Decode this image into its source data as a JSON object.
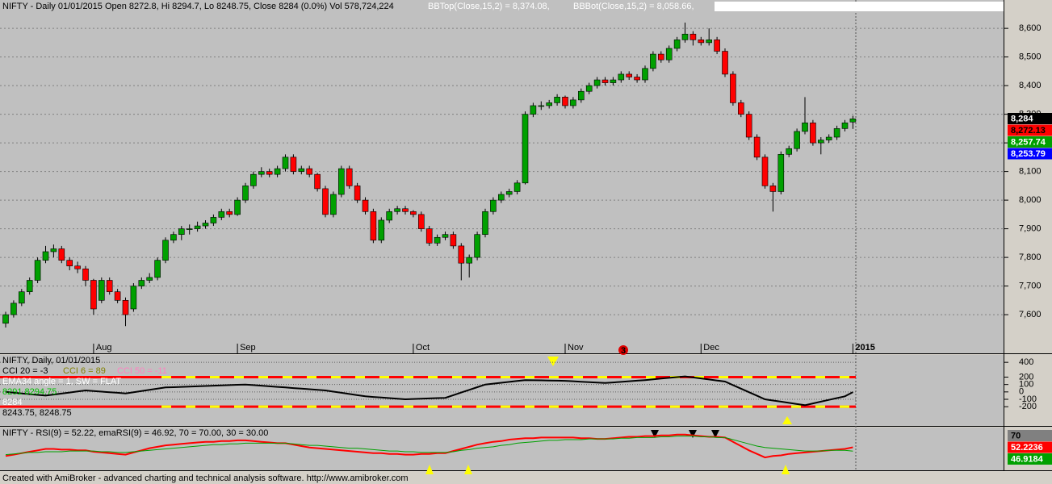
{
  "chart_data": [
    {
      "type": "candlestick",
      "title": "NIFTY - Daily 01/01/2015 Open 8272.8, Hi 8294.7, Lo 8248.75, Close 8284 (0.0%) Vol 578,724,224",
      "legend": [
        {
          "text": "BBTop(Close,15,2) = 8,374.08,",
          "color": "#ffffff"
        },
        {
          "text": "BBBot(Close,15,2) = 8,058.66,",
          "color": "#ffffff"
        }
      ],
      "categories": [
        null,
        null,
        null,
        null,
        null,
        null,
        null,
        null,
        null,
        null,
        null,
        "Aug",
        null,
        null,
        null,
        null,
        null,
        null,
        null,
        null,
        null,
        null,
        null,
        null,
        null,
        null,
        null,
        null,
        null,
        "Sep",
        null,
        null,
        null,
        null,
        null,
        null,
        null,
        null,
        null,
        null,
        null,
        null,
        null,
        null,
        null,
        null,
        null,
        null,
        null,
        null,
        null,
        "Oct",
        null,
        null,
        null,
        null,
        null,
        null,
        null,
        null,
        null,
        null,
        null,
        null,
        null,
        null,
        null,
        null,
        null,
        null,
        "Nov",
        null,
        null,
        null,
        null,
        null,
        null,
        null,
        null,
        null,
        null,
        null,
        null,
        null,
        null,
        null,
        null,
        "Dec",
        null,
        null,
        null,
        null,
        null,
        null,
        null,
        null,
        null,
        null,
        null,
        null,
        null,
        null,
        null,
        null,
        null,
        null,
        "2015"
      ],
      "ohlc": [
        [
          7570,
          7610,
          7555,
          7600
        ],
        [
          7600,
          7650,
          7590,
          7640
        ],
        [
          7640,
          7690,
          7630,
          7680
        ],
        [
          7680,
          7730,
          7670,
          7720
        ],
        [
          7720,
          7800,
          7710,
          7790
        ],
        [
          7790,
          7840,
          7780,
          7820
        ],
        [
          7820,
          7845,
          7800,
          7830
        ],
        [
          7830,
          7840,
          7780,
          7790
        ],
        [
          7790,
          7800,
          7755,
          7770
        ],
        [
          7770,
          7785,
          7745,
          7760
        ],
        [
          7760,
          7770,
          7700,
          7720
        ],
        [
          7720,
          7725,
          7600,
          7620
        ],
        [
          7650,
          7730,
          7640,
          7720
        ],
        [
          7720,
          7730,
          7670,
          7680
        ],
        [
          7680,
          7690,
          7640,
          7650
        ],
        [
          7650,
          7660,
          7560,
          7600
        ],
        [
          7620,
          7710,
          7610,
          7700
        ],
        [
          7700,
          7730,
          7690,
          7720
        ],
        [
          7720,
          7745,
          7710,
          7730
        ],
        [
          7730,
          7800,
          7720,
          7790
        ],
        [
          7790,
          7870,
          7780,
          7860
        ],
        [
          7860,
          7890,
          7850,
          7880
        ],
        [
          7880,
          7910,
          7860,
          7900
        ],
        [
          7900,
          7915,
          7880,
          7900
        ],
        [
          7900,
          7925,
          7890,
          7910
        ],
        [
          7910,
          7930,
          7900,
          7920
        ],
        [
          7920,
          7950,
          7910,
          7940
        ],
        [
          7940,
          7970,
          7930,
          7960
        ],
        [
          7960,
          7970,
          7940,
          7950
        ],
        [
          7950,
          8010,
          7945,
          8000
        ],
        [
          8000,
          8060,
          7990,
          8050
        ],
        [
          8050,
          8100,
          8040,
          8090
        ],
        [
          8090,
          8115,
          8080,
          8100
        ],
        [
          8100,
          8110,
          8080,
          8090
        ],
        [
          8090,
          8120,
          8080,
          8110
        ],
        [
          8110,
          8160,
          8100,
          8150
        ],
        [
          8150,
          8160,
          8090,
          8100
        ],
        [
          8100,
          8120,
          8090,
          8110
        ],
        [
          8110,
          8120,
          8080,
          8090
        ],
        [
          8090,
          8095,
          8030,
          8040
        ],
        [
          8040,
          8050,
          7940,
          7950
        ],
        [
          7950,
          8030,
          7940,
          8020
        ],
        [
          8020,
          8120,
          8010,
          8110
        ],
        [
          8110,
          8120,
          8040,
          8050
        ],
        [
          8050,
          8060,
          7990,
          8000
        ],
        [
          8000,
          8010,
          7950,
          7960
        ],
        [
          7960,
          7970,
          7850,
          7860
        ],
        [
          7860,
          7940,
          7850,
          7930
        ],
        [
          7930,
          7970,
          7920,
          7960
        ],
        [
          7960,
          7980,
          7950,
          7970
        ],
        [
          7970,
          7980,
          7950,
          7960
        ],
        [
          7960,
          7965,
          7940,
          7950
        ],
        [
          7950,
          7960,
          7890,
          7900
        ],
        [
          7900,
          7910,
          7840,
          7850
        ],
        [
          7850,
          7880,
          7840,
          7870
        ],
        [
          7870,
          7890,
          7860,
          7880
        ],
        [
          7880,
          7890,
          7830,
          7840
        ],
        [
          7840,
          7850,
          7720,
          7780
        ],
        [
          7780,
          7810,
          7730,
          7800
        ],
        [
          7800,
          7890,
          7790,
          7880
        ],
        [
          7880,
          7970,
          7870,
          7960
        ],
        [
          7960,
          8010,
          7950,
          8000
        ],
        [
          8000,
          8030,
          7990,
          8020
        ],
        [
          8020,
          8040,
          8010,
          8030
        ],
        [
          8030,
          8070,
          8020,
          8060
        ],
        [
          8060,
          8310,
          8055,
          8300
        ],
        [
          8300,
          8340,
          8290,
          8330
        ],
        [
          8330,
          8345,
          8315,
          8330
        ],
        [
          8330,
          8350,
          8320,
          8340
        ],
        [
          8340,
          8370,
          8330,
          8360
        ],
        [
          8360,
          8365,
          8320,
          8330
        ],
        [
          8330,
          8360,
          8320,
          8350
        ],
        [
          8350,
          8390,
          8340,
          8380
        ],
        [
          8380,
          8410,
          8370,
          8400
        ],
        [
          8400,
          8430,
          8390,
          8420
        ],
        [
          8420,
          8430,
          8400,
          8410
        ],
        [
          8410,
          8430,
          8400,
          8420
        ],
        [
          8420,
          8450,
          8410,
          8440
        ],
        [
          8440,
          8450,
          8420,
          8430
        ],
        [
          8430,
          8440,
          8410,
          8420
        ],
        [
          8420,
          8470,
          8410,
          8460
        ],
        [
          8460,
          8520,
          8450,
          8510
        ],
        [
          8510,
          8520,
          8480,
          8490
        ],
        [
          8490,
          8540,
          8480,
          8530
        ],
        [
          8530,
          8570,
          8520,
          8560
        ],
        [
          8560,
          8620,
          8550,
          8580
        ],
        [
          8580,
          8590,
          8540,
          8560
        ],
        [
          8560,
          8570,
          8540,
          8550
        ],
        [
          8550,
          8600,
          8540,
          8560
        ],
        [
          8560,
          8570,
          8510,
          8520
        ],
        [
          8520,
          8530,
          8430,
          8440
        ],
        [
          8440,
          8450,
          8330,
          8340
        ],
        [
          8340,
          8350,
          8290,
          8300
        ],
        [
          8300,
          8310,
          8210,
          8220
        ],
        [
          8220,
          8230,
          8140,
          8150
        ],
        [
          8150,
          8160,
          8040,
          8050
        ],
        [
          8050,
          8060,
          7960,
          8030
        ],
        [
          8030,
          8170,
          8020,
          8160
        ],
        [
          8160,
          8190,
          8150,
          8180
        ],
        [
          8180,
          8250,
          8170,
          8240
        ],
        [
          8240,
          8360,
          8230,
          8270
        ],
        [
          8270,
          8280,
          8190,
          8200
        ],
        [
          8200,
          8220,
          8160,
          8210
        ],
        [
          8210,
          8230,
          8200,
          8220
        ],
        [
          8220,
          8260,
          8210,
          8250
        ],
        [
          8250,
          8280,
          8240,
          8270
        ],
        [
          8272.8,
          8294.7,
          8248.75,
          8284
        ]
      ],
      "up_color": "#00a000",
      "down_color": "#ff0000",
      "ylim": [
        7465,
        8699
      ],
      "yticks": [
        {
          "value": 7600,
          "label": "7,600"
        },
        {
          "value": 7700,
          "label": "7,700"
        },
        {
          "value": 7800,
          "label": "7,800"
        },
        {
          "value": 7900,
          "label": "7,900"
        },
        {
          "value": 8000,
          "label": "8,000"
        },
        {
          "value": 8100,
          "label": "8,100"
        },
        {
          "value": 8200,
          "label": "8,200"
        },
        {
          "value": 8300,
          "label": "8,300"
        },
        {
          "value": 8400,
          "label": "8,400"
        },
        {
          "value": 8500,
          "label": "8,500"
        },
        {
          "value": 8600,
          "label": "8,600"
        }
      ],
      "grid": true,
      "last_values": [
        {
          "value": 8284,
          "label": "8,284",
          "color": "#000000",
          "text_color": "#ffffff"
        },
        {
          "value": 8272.13,
          "label": "8,272.13",
          "color": "#ff0000",
          "text_color": "#000000"
        },
        {
          "value": 8257.74,
          "label": "8,257.74",
          "color": "#00a000",
          "text_color": "#ffffff"
        },
        {
          "value": 8253.79,
          "label": "8,253.79",
          "color": "#0000ff",
          "text_color": "#ffffff"
        }
      ],
      "annotations": [
        "3"
      ]
    },
    {
      "type": "line",
      "title": "NIFTY, Daily, 01/01/2015",
      "annotations": [
        {
          "text": "CCI 20 = -3",
          "color": "#000000"
        },
        {
          "text": "CCI 6 = 89",
          "color": "#808000"
        },
        {
          "text": "CCI 50 = -11",
          "color": "#ff80c0"
        },
        {
          "text": "EMA34 angle = 1, SW = FLAT",
          "color": "#ffffff"
        },
        {
          "text": "8291 8294.75",
          "color": "#00c000"
        },
        {
          "text": "8284",
          "color": "#ffffff"
        },
        {
          "text": "8243.75, 8248.75",
          "color": "#000000"
        }
      ],
      "series": [
        {
          "color": "#000000",
          "values": [
            0,
            -10,
            -20,
            -30,
            -40,
            -50,
            -36,
            -22,
            -8,
            6,
            20,
            12,
            4,
            -4,
            -12,
            -20,
            -4,
            12,
            28,
            44,
            60,
            64,
            68,
            72,
            76,
            80,
            84,
            88,
            92,
            96,
            100,
            92,
            84,
            76,
            68,
            60,
            52,
            44,
            36,
            28,
            20,
            4,
            -12,
            -28,
            -44,
            -60,
            -68,
            -76,
            -84,
            -92,
            -100,
            -96,
            -92,
            -88,
            -84,
            -80,
            -44,
            -8,
            28,
            64,
            100,
            112,
            124,
            136,
            148,
            160,
            158,
            156,
            154,
            152,
            150,
            144,
            138,
            132,
            126,
            120,
            128,
            136,
            144,
            152,
            160,
            170,
            180,
            190,
            200,
            210,
            196,
            182,
            168,
            154,
            140,
            92,
            44,
            -4,
            -52,
            -100,
            -116,
            -132,
            -148,
            -164,
            -180,
            -156,
            -132,
            -108,
            -84,
            -60,
            -3
          ]
        }
      ],
      "ylim": [
        -460,
        500
      ],
      "yticks": [
        400,
        200,
        100,
        0,
        -100,
        -200
      ]
    },
    {
      "type": "line",
      "title": "NIFTY - RSI(9) = 52.22, emaRSI(9) = 46.92, 70 = 70.00, 30 = 30.00",
      "series": [
        {
          "color": "#ff0000",
          "values": [
            40,
            42,
            44,
            46,
            48,
            50,
            50,
            49,
            49,
            48,
            48,
            46,
            45,
            44,
            43,
            42,
            45,
            48,
            51,
            53,
            55,
            56,
            57,
            58,
            59,
            60,
            60,
            61,
            61,
            62,
            62,
            61,
            60,
            59,
            58,
            58,
            56,
            54,
            52,
            51,
            50,
            49,
            48,
            47,
            46,
            45,
            44,
            44,
            43,
            43,
            42,
            42,
            43,
            43,
            44,
            44,
            47,
            50,
            53,
            56,
            58,
            60,
            61,
            63,
            64,
            65,
            65,
            66,
            66,
            66,
            66,
            66,
            65,
            65,
            64,
            64,
            65,
            66,
            67,
            67,
            68,
            68,
            69,
            69,
            70,
            70,
            69,
            68,
            67,
            67,
            66,
            60,
            54,
            48,
            43,
            38,
            40,
            41,
            43,
            44,
            45,
            46,
            47,
            48,
            49,
            50,
            52.22
          ]
        },
        {
          "color": "#00a000",
          "values": [
            42,
            43,
            44,
            45,
            45,
            46,
            46,
            46,
            47,
            47,
            47,
            47,
            46,
            46,
            45,
            45,
            46,
            47,
            48,
            49,
            50,
            51,
            52,
            53,
            54,
            55,
            56,
            56,
            57,
            57,
            58,
            58,
            58,
            58,
            58,
            58,
            57,
            56,
            55,
            55,
            54,
            53,
            52,
            51,
            51,
            50,
            49,
            48,
            47,
            47,
            46,
            46,
            45,
            45,
            45,
            45,
            46,
            48,
            49,
            51,
            52,
            53,
            55,
            56,
            58,
            59,
            60,
            61,
            62,
            62,
            63,
            63,
            63,
            64,
            64,
            64,
            64,
            65,
            65,
            66,
            66,
            66,
            67,
            67,
            68,
            68,
            68,
            67,
            67,
            66,
            66,
            63,
            60,
            57,
            54,
            52,
            51,
            50,
            49,
            48,
            47,
            47,
            47,
            48,
            48,
            48,
            46.92
          ]
        }
      ],
      "ylim": [
        20,
        80
      ],
      "last_values": [
        {
          "value": 70,
          "label": "70",
          "color": "#808080",
          "text_color": "#000000"
        },
        {
          "value": 52.2236,
          "label": "52.2236",
          "color": "#ff0000",
          "text_color": "#ffffff"
        },
        {
          "value": 46.9184,
          "label": "46.9184",
          "color": "#00a000",
          "text_color": "#ffffff"
        }
      ]
    }
  ],
  "footer": "Created with AmiBroker - advanced charting and technical analysis software. http://www.amibroker.com"
}
